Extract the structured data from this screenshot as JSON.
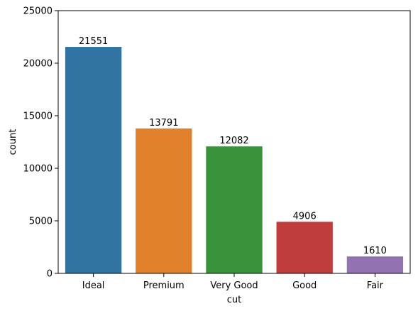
{
  "chart_data": {
    "type": "bar",
    "title": "",
    "xlabel": "cut",
    "ylabel": "count",
    "categories": [
      "Ideal",
      "Premium",
      "Very Good",
      "Good",
      "Fair"
    ],
    "values": [
      21551,
      13791,
      12082,
      4906,
      1610
    ],
    "data_labels": [
      "21551",
      "13791",
      "12082",
      "4906",
      "1610"
    ],
    "colors": [
      "#3274a1",
      "#e1812c",
      "#3a923a",
      "#c03d3e",
      "#9372b2"
    ],
    "ylim": [
      0,
      25000
    ],
    "yticks": [
      0,
      5000,
      10000,
      15000,
      20000,
      25000
    ],
    "ytick_labels": [
      "0",
      "5000",
      "10000",
      "15000",
      "20000",
      "25000"
    ],
    "grid": false,
    "legend": "none"
  }
}
